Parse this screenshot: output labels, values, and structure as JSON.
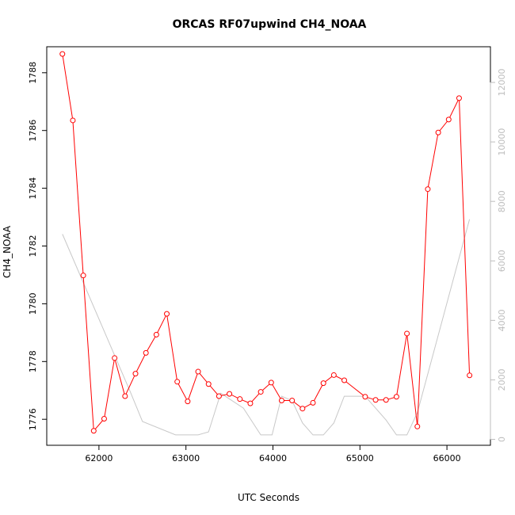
{
  "chart_data": {
    "type": "line",
    "title": "ORCAS RF07upwind CH4_NOAA",
    "xlabel": "UTC Seconds",
    "ylabel": "CH4_NOAA",
    "xlim": [
      61400,
      66500
    ],
    "ylim": [
      1775.1,
      1788.9
    ],
    "y2lim": [
      -200,
      13200
    ],
    "x_ticks": [
      62000,
      63000,
      64000,
      65000,
      66000
    ],
    "y_ticks": [
      1776,
      1778,
      1780,
      1782,
      1784,
      1786,
      1788
    ],
    "y2_ticks": [
      0,
      2000,
      4000,
      6000,
      8000,
      10000,
      12000
    ],
    "grid": false,
    "series": [
      {
        "color": "#ff0000",
        "axis": "left",
        "markers": "open-circle",
        "x": [
          61580,
          61700,
          61820,
          61940,
          62060,
          62180,
          62300,
          62420,
          62540,
          62660,
          62780,
          62900,
          63020,
          63140,
          63260,
          63380,
          63500,
          63620,
          63740,
          63860,
          63980,
          64100,
          64220,
          64340,
          64460,
          64580,
          64700,
          64820,
          65060,
          65180,
          65300,
          65420,
          65540,
          65660,
          65780,
          65900,
          66020,
          66140,
          66260
        ],
        "y": [
          1788.65,
          1786.35,
          1780.98,
          1775.6,
          1776.02,
          1778.12,
          1776.8,
          1777.58,
          1778.3,
          1778.93,
          1779.65,
          1777.3,
          1776.62,
          1777.65,
          1777.22,
          1776.8,
          1776.88,
          1776.7,
          1776.55,
          1776.95,
          1777.27,
          1776.65,
          1776.65,
          1776.37,
          1776.57,
          1777.25,
          1777.53,
          1777.35,
          1776.78,
          1776.67,
          1776.67,
          1776.78,
          1778.97,
          1775.75,
          1783.97,
          1785.93,
          1786.38,
          1787.12,
          1777.52
        ]
      },
      {
        "color": "#c8c8c8",
        "axis": "right",
        "markers": "none",
        "x": [
          61580,
          62360,
          62500,
          62880,
          63140,
          63260,
          63400,
          63660,
          63860,
          63990,
          64100,
          64220,
          64340,
          64460,
          64580,
          64700,
          64820,
          65060,
          65300,
          65420,
          65540,
          65660,
          66260
        ],
        "y": [
          6900,
          1600,
          600,
          150,
          150,
          250,
          1550,
          1050,
          150,
          150,
          1450,
          1300,
          550,
          150,
          150,
          550,
          1450,
          1450,
          650,
          150,
          150,
          900,
          7400
        ]
      }
    ]
  }
}
